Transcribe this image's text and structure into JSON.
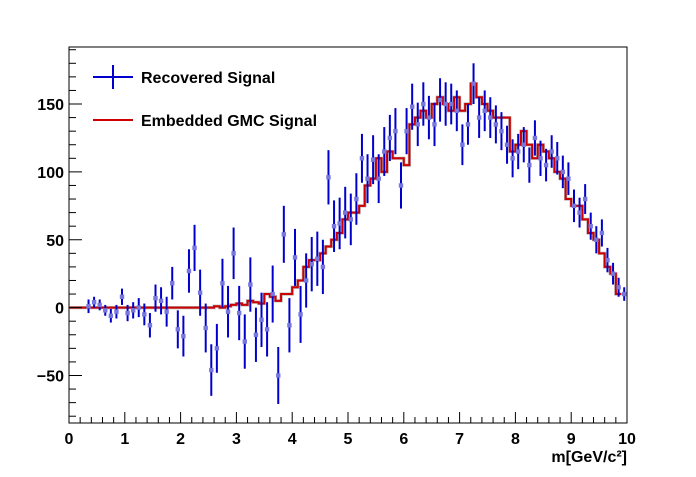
{
  "chart_data": {
    "type": "line",
    "title": "",
    "xlabel": "m[GeV/c²]",
    "ylabel": "",
    "xlim": [
      0,
      10
    ],
    "ylim": [
      -85,
      192
    ],
    "x_ticks": [
      0,
      1,
      2,
      3,
      4,
      5,
      6,
      7,
      8,
      9,
      10
    ],
    "x_tick_labels": [
      "0",
      "1",
      "2",
      "3",
      "4",
      "5",
      "6",
      "7",
      "8",
      "9",
      "10"
    ],
    "y_ticks": [
      -50,
      0,
      50,
      100,
      150
    ],
    "y_tick_labels": [
      "−50",
      "0",
      "50",
      "100",
      "150"
    ],
    "legend_position": "top-left",
    "grid": false,
    "bin_edges": [
      0,
      0.3,
      0.4,
      0.5,
      0.6,
      0.7,
      0.8,
      0.9,
      1.0,
      1.1,
      1.2,
      1.3,
      1.4,
      1.5,
      1.6,
      1.7,
      1.8,
      1.9,
      2.0,
      2.1,
      2.2,
      2.3,
      2.4,
      2.5,
      2.6,
      2.7,
      2.8,
      2.9,
      3.0,
      3.1,
      3.2,
      3.3,
      3.4,
      3.5,
      3.6,
      3.7,
      3.8,
      3.9,
      4.0,
      4.1,
      4.2,
      4.3,
      4.4,
      4.5,
      4.6,
      4.7,
      4.8,
      4.9,
      5.0,
      5.1,
      5.2,
      5.3,
      5.4,
      5.5,
      5.6,
      5.7,
      5.8,
      5.9,
      6.0,
      6.1,
      6.2,
      6.3,
      6.4,
      6.5,
      6.6,
      6.7,
      6.8,
      6.9,
      7.0,
      7.1,
      7.2,
      7.3,
      7.4,
      7.5,
      7.6,
      7.7,
      7.8,
      7.9,
      8.0,
      8.1,
      8.2,
      8.3,
      8.4,
      8.5,
      8.6,
      8.7,
      8.8,
      8.9,
      9.0,
      9.1,
      9.2,
      9.3,
      9.4,
      9.5,
      9.6,
      9.7,
      9.8,
      9.9,
      10.0
    ],
    "series": [
      {
        "name": "Recovered Signal",
        "kind": "points_with_errors",
        "color": "#0000cc",
        "marker_color": "#7777dd",
        "x": [
          0.35,
          0.45,
          0.55,
          0.65,
          0.75,
          0.85,
          0.95,
          1.05,
          1.15,
          1.25,
          1.35,
          1.45,
          1.55,
          1.65,
          1.75,
          1.85,
          1.95,
          2.05,
          2.15,
          2.25,
          2.35,
          2.45,
          2.55,
          2.65,
          2.75,
          2.85,
          2.95,
          3.05,
          3.15,
          3.25,
          3.35,
          3.45,
          3.55,
          3.65,
          3.75,
          3.85,
          3.95,
          4.05,
          4.15,
          4.25,
          4.35,
          4.45,
          4.55,
          4.65,
          4.75,
          4.85,
          4.95,
          5.05,
          5.15,
          5.25,
          5.35,
          5.45,
          5.55,
          5.65,
          5.75,
          5.85,
          5.95,
          6.05,
          6.15,
          6.25,
          6.35,
          6.45,
          6.55,
          6.65,
          6.75,
          6.85,
          6.95,
          7.05,
          7.15,
          7.25,
          7.35,
          7.45,
          7.55,
          7.65,
          7.75,
          7.85,
          7.95,
          8.05,
          8.15,
          8.25,
          8.35,
          8.45,
          8.55,
          8.65,
          8.75,
          8.85,
          8.95,
          9.05,
          9.15,
          9.25,
          9.35,
          9.45,
          9.55,
          9.65,
          9.75,
          9.85,
          9.95
        ],
        "y": [
          1,
          4,
          2,
          -2,
          -6,
          -3,
          8,
          -4,
          -2,
          0,
          -5,
          -13,
          7,
          5,
          -3,
          18,
          -16,
          -21,
          27,
          44,
          11,
          -15,
          -46,
          -30,
          18,
          -3,
          40,
          -4,
          -25,
          17,
          -20,
          -9,
          -16,
          10,
          -50,
          54,
          -13,
          37,
          -5,
          20,
          32,
          36,
          30,
          96,
          60,
          62,
          70,
          65,
          80,
          110,
          95,
          109,
          95,
          115,
          125,
          130,
          90,
          130,
          148,
          135,
          150,
          140,
          135,
          153,
          150,
          150,
          145,
          120,
          135,
          165,
          140,
          145,
          140,
          135,
          130,
          120,
          110,
          115,
          120,
          105,
          125,
          110,
          105,
          115,
          110,
          100,
          95,
          75,
          70,
          80,
          60,
          50,
          55,
          35,
          25,
          15,
          10
        ],
        "err": [
          5,
          4,
          4,
          4,
          5,
          5,
          6,
          6,
          6,
          7,
          8,
          9,
          10,
          10,
          11,
          12,
          14,
          15,
          16,
          17,
          17,
          18,
          19,
          18,
          18,
          19,
          19,
          20,
          20,
          20,
          20,
          20,
          20,
          21,
          21,
          21,
          20,
          21,
          21,
          20,
          20,
          20,
          20,
          20,
          19,
          19,
          19,
          19,
          19,
          18,
          18,
          18,
          18,
          18,
          17,
          17,
          17,
          17,
          17,
          16,
          16,
          16,
          16,
          16,
          16,
          15,
          15,
          15,
          15,
          15,
          15,
          15,
          15,
          14,
          14,
          14,
          14,
          13,
          13,
          13,
          13,
          13,
          12,
          12,
          12,
          12,
          12,
          12,
          11,
          11,
          10,
          10,
          10,
          9,
          8,
          7,
          5
        ]
      },
      {
        "name": "Embedded GMC Signal",
        "kind": "step",
        "color": "#cc0000",
        "shadow_color": "#777777",
        "values": [
          0,
          0,
          0,
          0,
          0,
          0,
          0,
          0,
          0,
          0,
          0,
          0,
          0,
          0,
          0,
          0,
          0,
          0,
          0,
          0,
          0,
          0,
          0,
          0,
          1,
          0,
          1,
          2,
          3,
          2,
          5,
          4,
          3,
          10,
          8,
          5,
          10,
          10,
          15,
          20,
          30,
          35,
          35,
          40,
          45,
          50,
          55,
          65,
          70,
          70,
          75,
          90,
          95,
          110,
          100,
          115,
          110,
          110,
          105,
          135,
          140,
          145,
          140,
          150,
          155,
          150,
          145,
          155,
          145,
          150,
          165,
          155,
          150,
          145,
          140,
          140,
          140,
          115,
          120,
          130,
          120,
          110,
          120,
          115,
          110,
          100,
          95,
          80,
          75,
          75,
          65,
          55,
          50,
          40,
          30,
          25,
          10
        ]
      }
    ]
  }
}
